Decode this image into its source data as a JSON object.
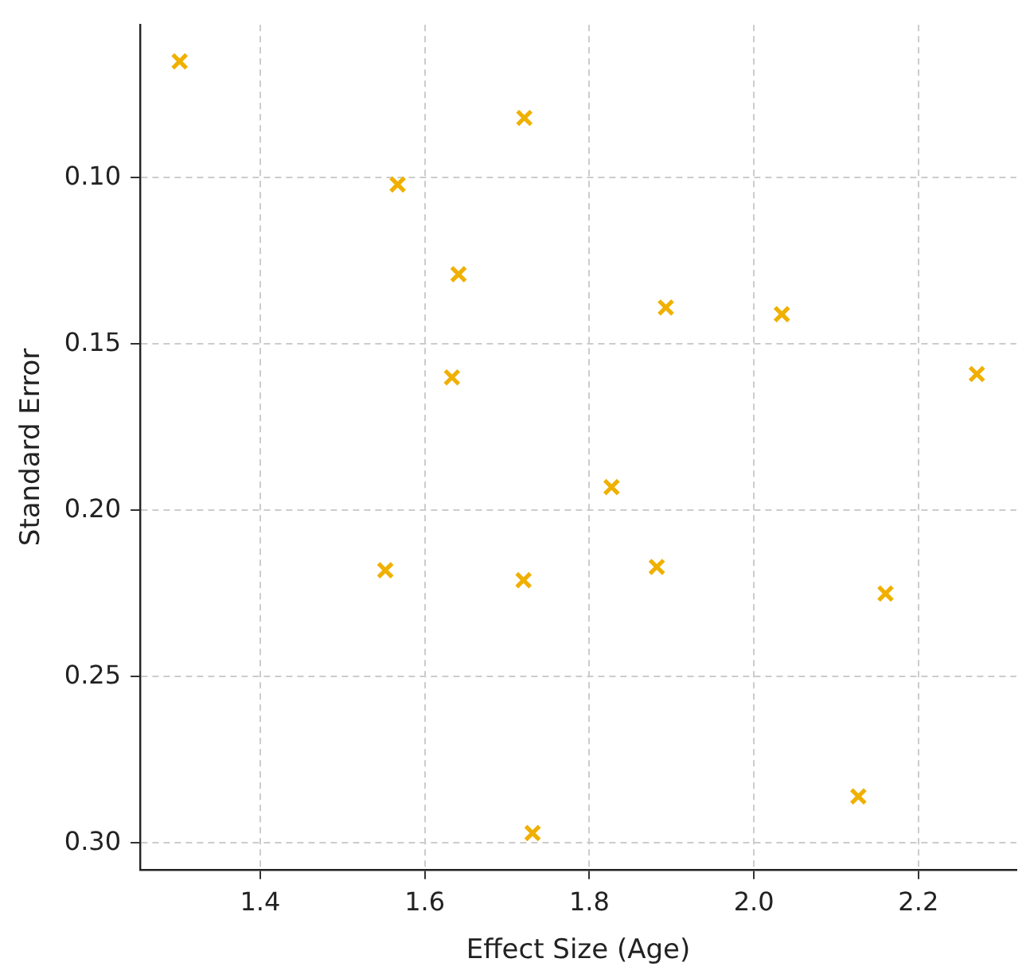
{
  "chart_data": {
    "type": "scatter",
    "xlabel": "Effect Size (Age)",
    "ylabel": "Standard Error",
    "x": [
      1.302,
      1.721,
      1.567,
      1.641,
      1.893,
      2.034,
      1.633,
      2.271,
      1.827,
      1.552,
      1.72,
      1.882,
      2.16,
      2.127,
      1.731
    ],
    "series": [
      {
        "color": "#f0b000",
        "values": [
          0.065,
          0.082,
          0.102,
          0.129,
          0.139,
          0.141,
          0.16,
          0.159,
          0.193,
          0.218,
          0.221,
          0.217,
          0.225,
          0.286,
          0.297
        ]
      }
    ],
    "xlim": [
      1.254,
      2.319
    ],
    "ylim": [
      0.308,
      0.054
    ],
    "xticks": [
      1.4,
      1.6,
      1.8,
      {
        "value": 2.0,
        "label": "2.0"
      },
      2.2
    ],
    "yticks": [
      {
        "value": 0.1,
        "label": "0.10"
      },
      {
        "value": 0.15,
        "label": "0.15"
      },
      {
        "value": 0.2,
        "label": "0.20"
      },
      {
        "value": 0.25,
        "label": "0.25"
      },
      {
        "value": 0.3,
        "label": "0.30"
      }
    ],
    "grid": true,
    "marker": "cross"
  }
}
